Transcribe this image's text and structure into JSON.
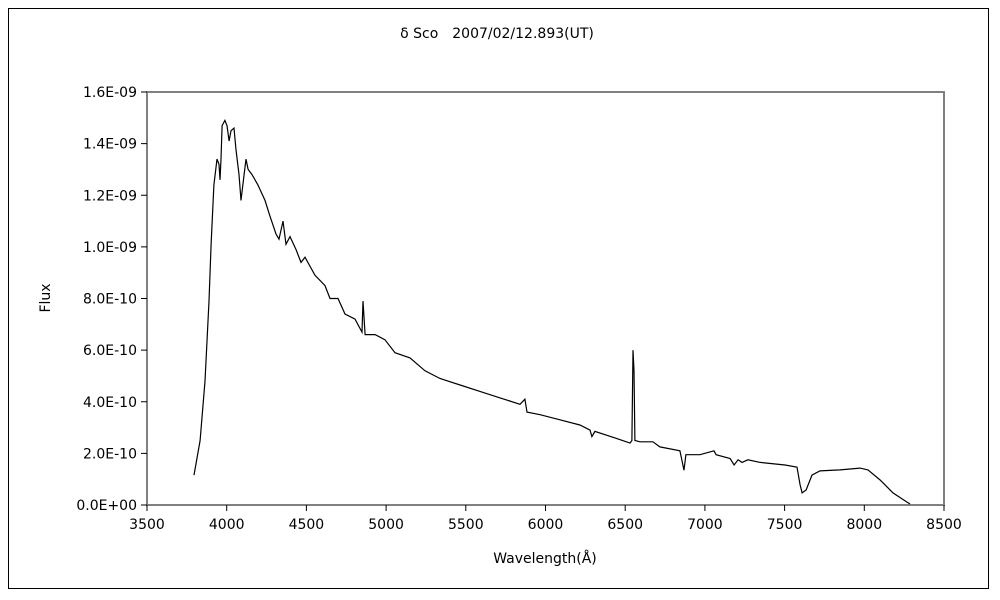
{
  "chart_data": {
    "type": "line",
    "title": "δ Sco　2007/02/12.893(UT)",
    "xlabel": "Wavelength(Å)",
    "ylabel": "Flux",
    "xlim": [
      3500,
      8500
    ],
    "ylim": [
      0,
      1.6e-09
    ],
    "grid": false,
    "x_ticks": [
      3500,
      4000,
      4500,
      5000,
      5500,
      6000,
      6500,
      7000,
      7500,
      8000,
      8500
    ],
    "x_tick_labels": [
      "3500",
      "4000",
      "4500",
      "5000",
      "5500",
      "6000",
      "6500",
      "7000",
      "7500",
      "8000",
      "8500"
    ],
    "y_ticks": [
      0,
      2e-10,
      4e-10,
      6e-10,
      8e-10,
      1e-09,
      1.2e-09,
      1.4e-09,
      1.6e-09
    ],
    "y_tick_labels": [
      "0.0E+00",
      "2.0E-10",
      "4.0E-10",
      "6.0E-10",
      "8.0E-10",
      "1.0E-09",
      "1.2E-09",
      "1.4E-09",
      "1.6E-09"
    ],
    "series": [
      {
        "name": "Flux",
        "color": "#000000",
        "x": [
          3795,
          3833,
          3864,
          3889,
          3902,
          3920,
          3939,
          3952,
          3958,
          3964,
          3971,
          3989,
          4002,
          4015,
          4027,
          4046,
          4058,
          4077,
          4090,
          4109,
          4121,
          4134,
          4159,
          4196,
          4240,
          4271,
          4309,
          4328,
          4353,
          4372,
          4397,
          4435,
          4466,
          4491,
          4554,
          4617,
          4648,
          4698,
          4742,
          4805,
          4849,
          4855,
          4868,
          4931,
          4993,
          5056,
          5150,
          5244,
          5338,
          5464,
          5589,
          5715,
          5840,
          5871,
          5884,
          5966,
          6091,
          6216,
          6279,
          6291,
          6310,
          6436,
          6530,
          6542,
          6549,
          6555,
          6561,
          6593,
          6674,
          6718,
          6843,
          6869,
          6881,
          6906,
          6969,
          7057,
          7070,
          7158,
          7183,
          7208,
          7233,
          7270,
          7346,
          7503,
          7578,
          7597,
          7610,
          7635,
          7672,
          7722,
          7848,
          7973,
          8023,
          8099,
          8180,
          8256,
          8287
        ],
        "y_e10": [
          1.16,
          2.5,
          4.8,
          7.9,
          10.1,
          12.4,
          13.4,
          13.2,
          12.6,
          13.4,
          14.7,
          14.9,
          14.7,
          14.1,
          14.5,
          14.6,
          13.8,
          12.8,
          11.8,
          12.8,
          13.4,
          13.0,
          12.8,
          12.4,
          11.8,
          11.2,
          10.5,
          10.3,
          11.0,
          10.1,
          10.4,
          9.9,
          9.4,
          9.6,
          8.9,
          8.5,
          8.0,
          8.0,
          7.4,
          7.2,
          6.7,
          7.9,
          6.6,
          6.6,
          6.4,
          5.9,
          5.7,
          5.2,
          4.9,
          4.65,
          4.4,
          4.15,
          3.9,
          4.1,
          3.6,
          3.5,
          3.3,
          3.1,
          2.9,
          2.65,
          2.85,
          2.6,
          2.4,
          2.5,
          6.0,
          5.2,
          2.5,
          2.45,
          2.45,
          2.25,
          2.1,
          1.35,
          1.95,
          1.95,
          1.95,
          2.1,
          1.95,
          1.8,
          1.55,
          1.75,
          1.65,
          1.75,
          1.65,
          1.55,
          1.47,
          0.78,
          0.47,
          0.58,
          1.16,
          1.32,
          1.36,
          1.43,
          1.36,
          0.97,
          0.47,
          0.16,
          0.04
        ]
      }
    ]
  }
}
